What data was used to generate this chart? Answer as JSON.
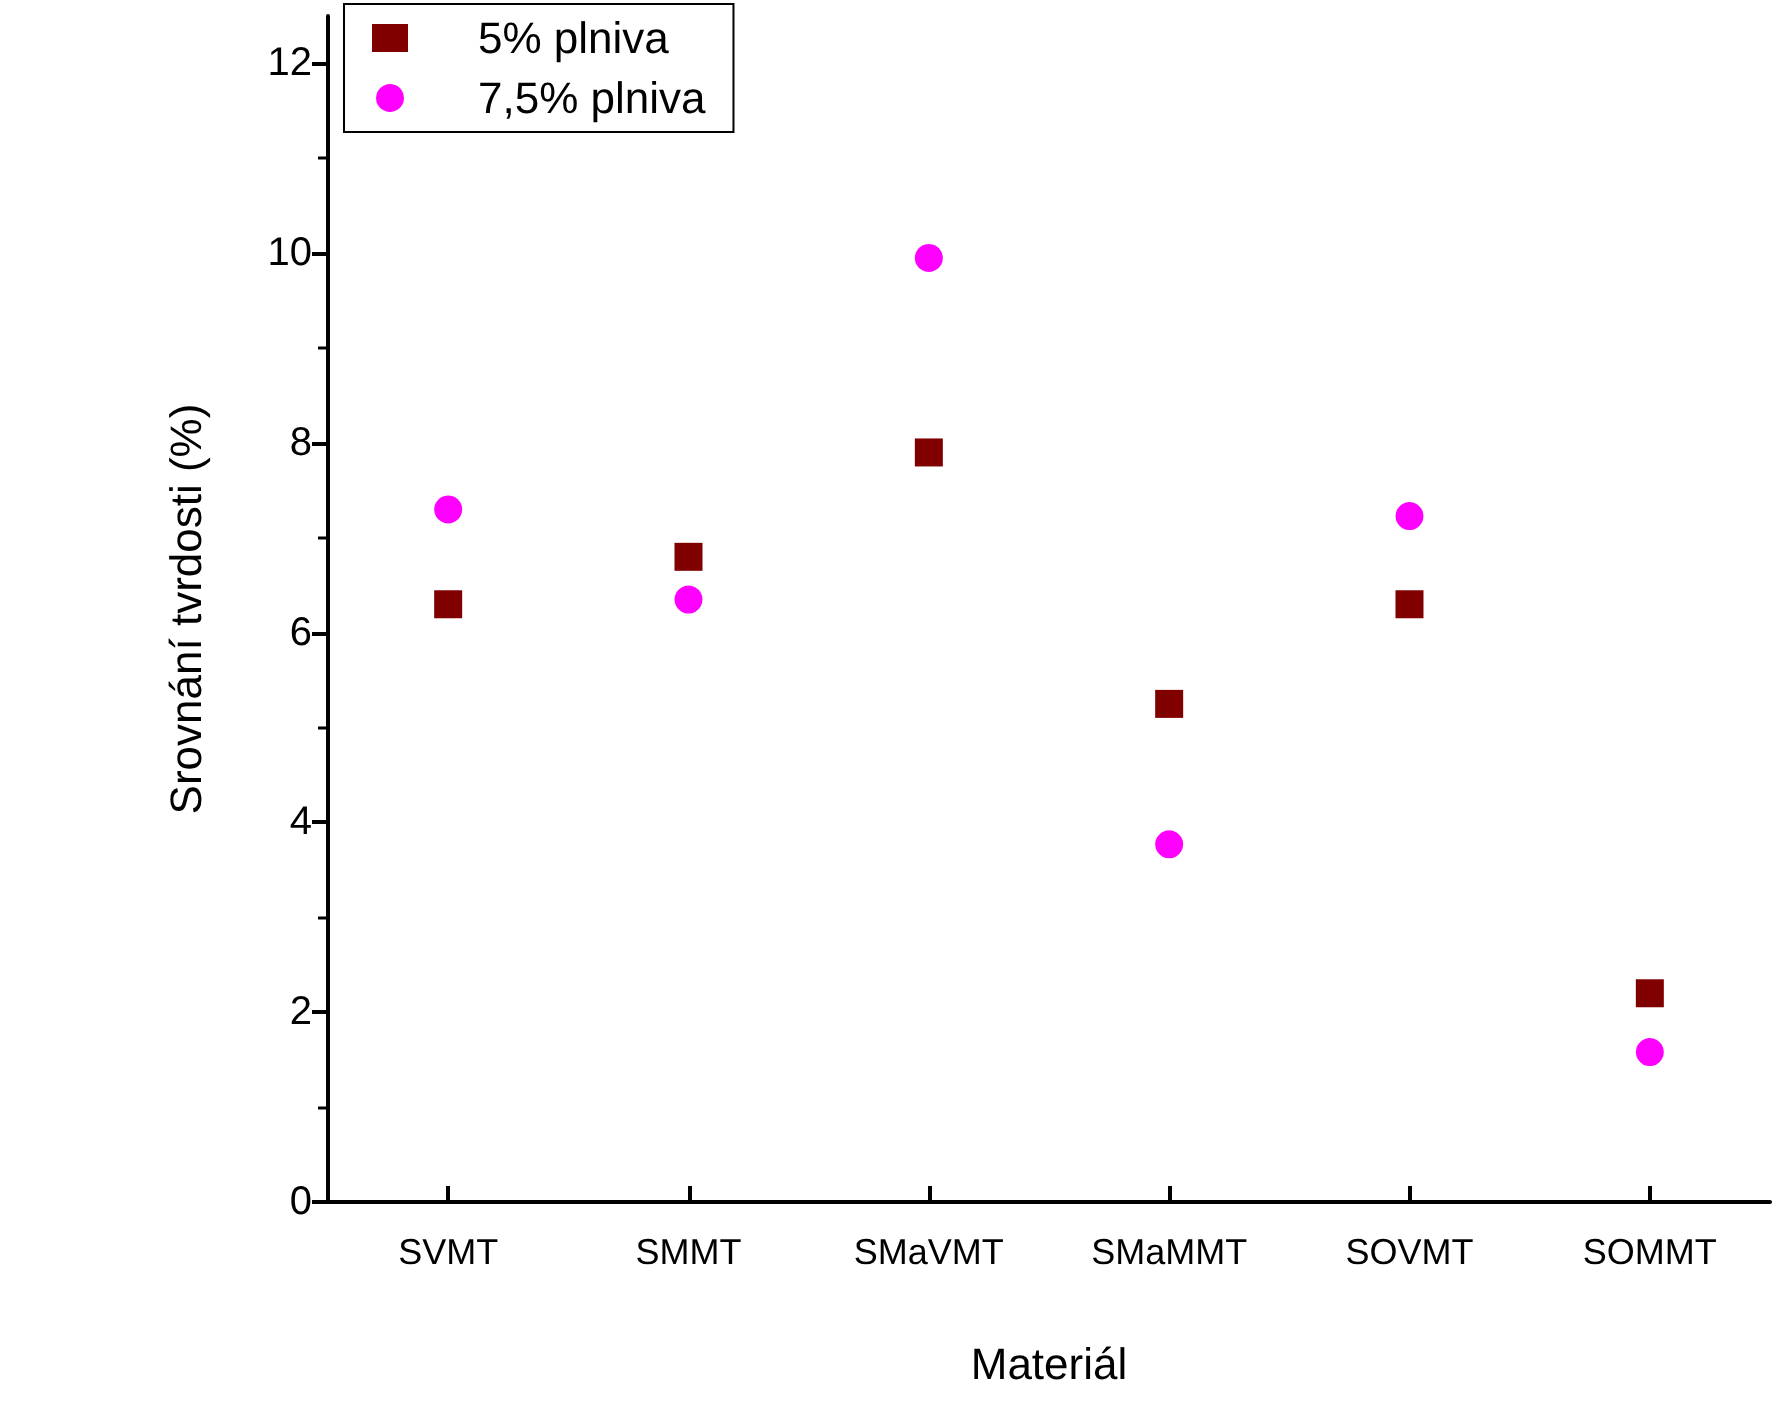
{
  "chart_data": {
    "type": "scatter",
    "xlabel": "Materiál",
    "ylabel": "Srovnání tvrdosti (%)",
    "categories": [
      "SVMT",
      "SMMT",
      "SMaVMT",
      "SMaMMT",
      "SOVMT",
      "SOMMT"
    ],
    "series": [
      {
        "name": "5% plniva",
        "color": "#800000",
        "marker": "square",
        "values": [
          6.3,
          6.8,
          7.9,
          5.25,
          6.3,
          2.2
        ]
      },
      {
        "name": "7,5% plniva",
        "color": "#ff00ff",
        "marker": "circle",
        "values": [
          7.3,
          6.35,
          9.95,
          3.77,
          7.23,
          1.58
        ]
      }
    ],
    "ylim": [
      0,
      12.5
    ],
    "yticks": [
      0,
      2,
      4,
      6,
      8,
      10,
      12
    ],
    "grid": false,
    "legend": "top left"
  }
}
